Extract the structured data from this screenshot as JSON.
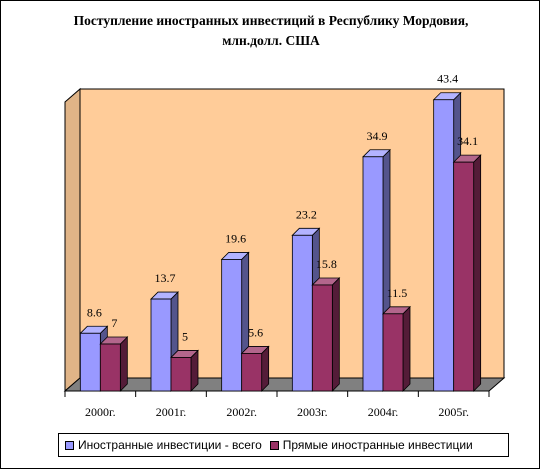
{
  "chart_data": {
    "type": "bar",
    "title": "Поступление иностранных инвестиций в Республику Мордовия, млн.долл. США",
    "categories": [
      "2000г.",
      "2001г.",
      "2002г.",
      "2003г.",
      "2004г.",
      "2005г."
    ],
    "series": [
      {
        "name": "Иностранные инвестиции - всего",
        "values": [
          8.6,
          13.7,
          19.6,
          23.2,
          34.9,
          43.4
        ],
        "labels": [
          "8.6",
          "13.7",
          "19.6",
          "23.2",
          "34.9",
          "43.4"
        ],
        "color": "#9999FF"
      },
      {
        "name": "Прямые иностранные инвестиции",
        "values": [
          7,
          5,
          5.6,
          15.8,
          11.5,
          34.1
        ],
        "labels": [
          "7",
          "5",
          "5.6",
          "15.8",
          "11.5",
          "34.1"
        ],
        "color": "#993366"
      }
    ],
    "ylim": [
      0,
      45
    ],
    "grid": false,
    "legend_position": "bottom",
    "plot_background": "#FFCC99"
  }
}
